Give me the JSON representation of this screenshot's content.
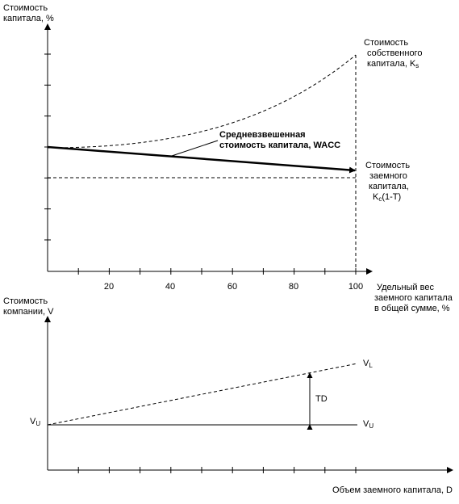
{
  "top_chart": {
    "y_axis_label_line1": "Стоимость",
    "y_axis_label_line2": "капитала, %",
    "x_axis_label_line1": "Удельный вес",
    "x_axis_label_line2": "заемного капитала",
    "x_axis_label_line3": "в общей сумме, %",
    "x_tick_labels": [
      "20",
      "40",
      "60",
      "80",
      "100"
    ],
    "equity_label_line1": "Стоимость",
    "equity_label_line2": "собственного",
    "equity_label_line3_main": "капитала, K",
    "equity_label_line3_sub": "s",
    "wacc_label_line1": "Средневзвешенная",
    "wacc_label_line2": "стоимость капитала, WACC",
    "debt_label_line1": "Стоимость",
    "debt_label_line2": "заемного",
    "debt_label_line3": "капитала,",
    "debt_label_line4_main": "K",
    "debt_label_line4_sub": "c",
    "debt_label_line4_rest": "(1-T)"
  },
  "bottom_chart": {
    "y_axis_label_line1": "Стоимость",
    "y_axis_label_line2": "компании, V",
    "x_axis_label": "Объем заемного капитала, D",
    "vu_left_main": "V",
    "vu_left_sub": "U",
    "vl_main": "V",
    "vl_sub": "L",
    "vu_right_main": "V",
    "vu_right_sub": "U",
    "td_label": "TD"
  },
  "chart_data": [
    {
      "type": "line",
      "x": [
        0,
        20,
        40,
        60,
        80,
        100
      ],
      "xlim": [
        0,
        100
      ],
      "series": [
        {
          "name": "Стоимость собственного капитала, Ks",
          "style": "dashed",
          "shape": "rising-convex",
          "x": [
            0,
            20,
            40,
            60,
            80,
            100
          ],
          "y": [
            3.0,
            3.2,
            3.55,
            4.0,
            4.55,
            5.95
          ]
        },
        {
          "name": "Средневзвешенная стоимость капитала, WACC",
          "style": "solid-bold-arrow",
          "x": [
            0,
            100
          ],
          "y": [
            3.0,
            2.3
          ]
        },
        {
          "name": "Стоимость заемного капитала, Kc(1-T)",
          "style": "dashed",
          "x": [
            0,
            100
          ],
          "y": [
            2.0,
            2.0
          ]
        }
      ],
      "y_ticks_unlabeled": 7,
      "x_tick_labels": [
        "20",
        "40",
        "60",
        "80",
        "100"
      ]
    },
    {
      "type": "line",
      "series": [
        {
          "name": "VL",
          "style": "dashed",
          "x": [
            0,
            1
          ],
          "y": [
            0,
            1
          ]
        },
        {
          "name": "VU",
          "style": "solid",
          "x": [
            0,
            1
          ],
          "y": [
            0,
            0
          ]
        }
      ],
      "annotation": "TD",
      "x_ticks_unlabeled": 10
    }
  ]
}
